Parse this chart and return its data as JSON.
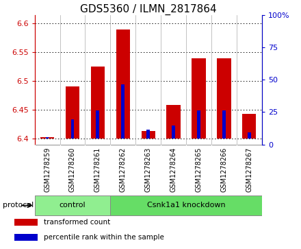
{
  "title": "GDS5360 / ILMN_2817864",
  "samples": [
    "GSM1278259",
    "GSM1278260",
    "GSM1278261",
    "GSM1278262",
    "GSM1278263",
    "GSM1278264",
    "GSM1278265",
    "GSM1278266",
    "GSM1278267"
  ],
  "transformed_count": [
    6.402,
    6.491,
    6.525,
    6.59,
    6.413,
    6.458,
    6.54,
    6.54,
    6.443
  ],
  "percentile_rank": [
    1,
    15,
    22,
    42,
    7,
    10,
    22,
    22,
    5
  ],
  "ylim_left": [
    6.39,
    6.615
  ],
  "ylim_right": [
    0,
    100
  ],
  "yticks_left": [
    6.4,
    6.45,
    6.5,
    6.55,
    6.6
  ],
  "yticks_right": [
    0,
    25,
    50,
    75,
    100
  ],
  "bar_bottom": 6.4,
  "bar_color": "#cc0000",
  "percentile_color": "#0000cc",
  "protocol_groups": [
    {
      "label": "control",
      "start": 0,
      "end": 3,
      "color": "#90ee90"
    },
    {
      "label": "Csnk1a1 knockdown",
      "start": 3,
      "end": 9,
      "color": "#66dd66"
    }
  ],
  "protocol_label": "protocol",
  "legend_items": [
    {
      "label": "transformed count",
      "color": "#cc0000"
    },
    {
      "label": "percentile rank within the sample",
      "color": "#0000cc"
    }
  ],
  "plot_bg": "#ffffff",
  "bar_width": 0.55,
  "blue_bar_width": 0.13,
  "title_fontsize": 11,
  "tick_fontsize": 8,
  "sample_fontsize": 7
}
